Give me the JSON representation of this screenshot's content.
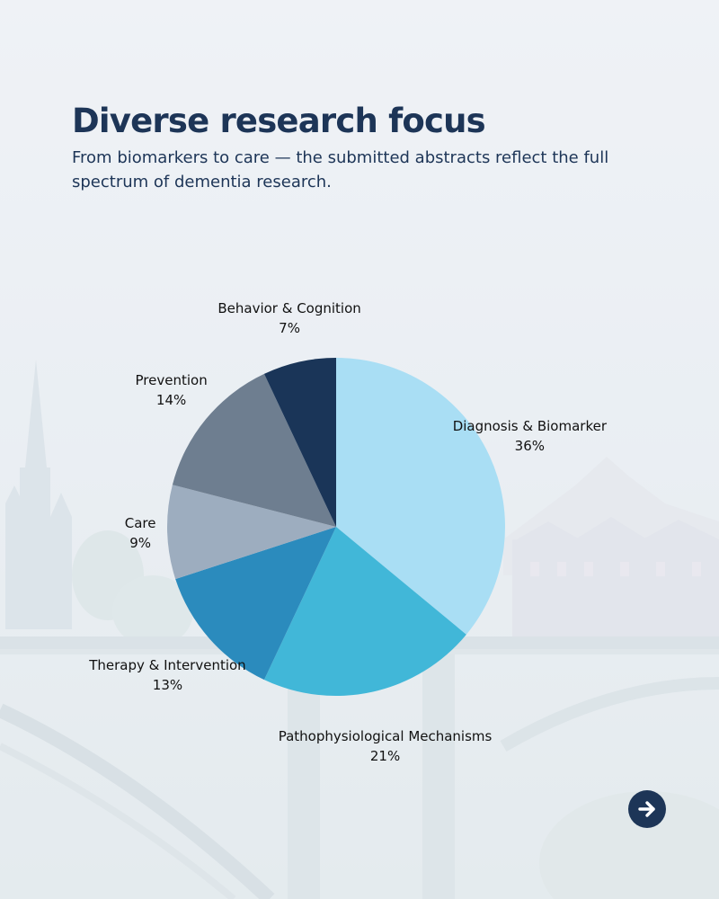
{
  "header": {
    "title": "Diverse research focus",
    "subtitle": "From biomarkers to care — the submitted abstracts reflect the full spectrum of dementia research."
  },
  "colors": {
    "title": "#1d3557",
    "button": "#1d3557"
  },
  "navigation": {
    "next_icon": "arrow-right-icon"
  },
  "chart_data": {
    "type": "pie",
    "title": "",
    "start": "top",
    "direction": "clockwise",
    "slices": [
      {
        "label": "Diagnosis & Biomarker",
        "value": 36,
        "display": "36%",
        "color": "#a9def4"
      },
      {
        "label": "Pathophysiological Mechanisms",
        "value": 21,
        "display": "21%",
        "color": "#41b7d8"
      },
      {
        "label": "Therapy & Intervention",
        "value": 13,
        "display": "13%",
        "color": "#2b8bbd"
      },
      {
        "label": "Care",
        "value": 9,
        "display": "9%",
        "color": "#9dadbf"
      },
      {
        "label": "Prevention",
        "value": 14,
        "display": "14%",
        "color": "#6e7e90"
      },
      {
        "label": "Behavior & Cognition",
        "value": 7,
        "display": "7%",
        "color": "#1a3558"
      }
    ]
  }
}
